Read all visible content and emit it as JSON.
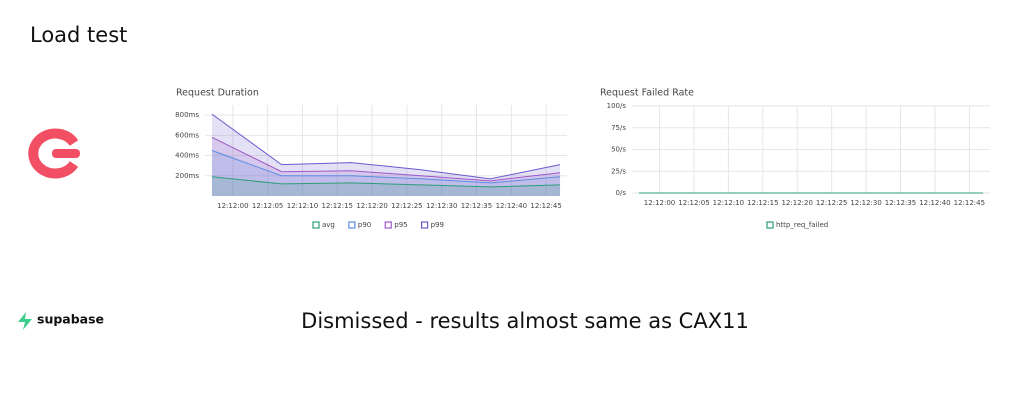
{
  "slide": {
    "title": "Load test",
    "brand": "supabase",
    "note": "Dismissed - results almost same as CAX11"
  },
  "chart_data": [
    {
      "type": "area",
      "title": "Request Duration",
      "x": [
        "12:11:57",
        "12:12:07",
        "12:12:17",
        "12:12:27",
        "12:12:37",
        "12:12:47"
      ],
      "series": [
        {
          "name": "avg",
          "color": "#2e9c7a",
          "values": [
            190,
            120,
            130,
            110,
            90,
            110
          ]
        },
        {
          "name": "p90",
          "color": "#5b8de0",
          "values": [
            450,
            200,
            200,
            170,
            130,
            190
          ]
        },
        {
          "name": "p95",
          "color": "#9b59c6",
          "values": [
            580,
            240,
            250,
            200,
            150,
            230
          ]
        },
        {
          "name": "p99",
          "color": "#6a5acd",
          "values": [
            810,
            310,
            330,
            260,
            170,
            310
          ]
        }
      ],
      "xlim": [
        "12:11:56",
        "12:12:48"
      ],
      "xticks": [
        "12:12:00",
        "12:12:05",
        "12:12:10",
        "12:12:15",
        "12:12:20",
        "12:12:25",
        "12:12:30",
        "12:12:35",
        "12:12:40",
        "12:12:45"
      ],
      "ylim": [
        0,
        900
      ],
      "yticks": [
        {
          "value": 200,
          "label": "200ms"
        },
        {
          "value": 400,
          "label": "400ms"
        },
        {
          "value": 600,
          "label": "600ms"
        },
        {
          "value": 800,
          "label": "800ms"
        }
      ],
      "grid": true,
      "legend": "bottom"
    },
    {
      "type": "area",
      "title": "Request Failed Rate",
      "x": [
        "12:11:57",
        "12:12:07",
        "12:12:17",
        "12:12:27",
        "12:12:37",
        "12:12:47"
      ],
      "series": [
        {
          "name": "http_req_failed",
          "color": "#2e9c7a",
          "values": [
            0,
            0,
            0,
            0,
            0,
            0
          ]
        }
      ],
      "xlim": [
        "12:11:56",
        "12:12:48"
      ],
      "xticks": [
        "12:12:00",
        "12:12:05",
        "12:12:10",
        "12:12:15",
        "12:12:20",
        "12:12:25",
        "12:12:30",
        "12:12:35",
        "12:12:40",
        "12:12:45"
      ],
      "ylim": [
        0,
        100
      ],
      "yticks": [
        {
          "value": 0,
          "label": "0/s"
        },
        {
          "value": 25,
          "label": "25/s"
        },
        {
          "value": 50,
          "label": "50/s"
        },
        {
          "value": 75,
          "label": "75/s"
        },
        {
          "value": 100,
          "label": "100/s"
        }
      ],
      "grid": true,
      "legend": "bottom"
    }
  ]
}
